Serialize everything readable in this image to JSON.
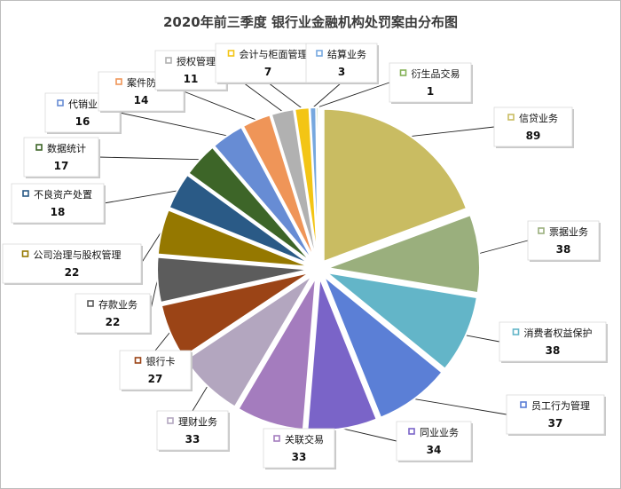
{
  "chart_data": {
    "type": "pie",
    "title": "2020年前三季度 银行业金融机构处罚案由分布图",
    "legend": "none",
    "slices": [
      {
        "name": "信贷业务",
        "value": 89,
        "color": "#c9bc62"
      },
      {
        "name": "票据业务",
        "value": 38,
        "color": "#9aaf7d"
      },
      {
        "name": "消费者权益保护",
        "value": 38,
        "color": "#63b5c8"
      },
      {
        "name": "员工行为管理",
        "value": 37,
        "color": "#5b7fd6"
      },
      {
        "name": "同业业务",
        "value": 34,
        "color": "#7a64c8"
      },
      {
        "name": "关联交易",
        "value": 33,
        "color": "#a47cbe"
      },
      {
        "name": "理财业务",
        "value": 33,
        "color": "#b3a6bf"
      },
      {
        "name": "银行卡",
        "value": 27,
        "color": "#9b4416"
      },
      {
        "name": "存款业务",
        "value": 22,
        "color": "#5c5c5c"
      },
      {
        "name": "公司治理与股权管理",
        "value": 22,
        "color": "#957800"
      },
      {
        "name": "不良资产处置",
        "value": 18,
        "color": "#2a5a86"
      },
      {
        "name": "数据统计",
        "value": 17,
        "color": "#3d6528"
      },
      {
        "name": "代销业务",
        "value": 16,
        "color": "#678cd4"
      },
      {
        "name": "案件防控",
        "value": 14,
        "color": "#ef9558"
      },
      {
        "name": "授权管理",
        "value": 11,
        "color": "#b1b1b1"
      },
      {
        "name": "会计与柜面管理",
        "value": 7,
        "color": "#f3c515"
      },
      {
        "name": "结算业务",
        "value": 3,
        "color": "#77a8df"
      },
      {
        "name": "衍生品交易",
        "value": 1,
        "color": "#84b156"
      }
    ]
  }
}
